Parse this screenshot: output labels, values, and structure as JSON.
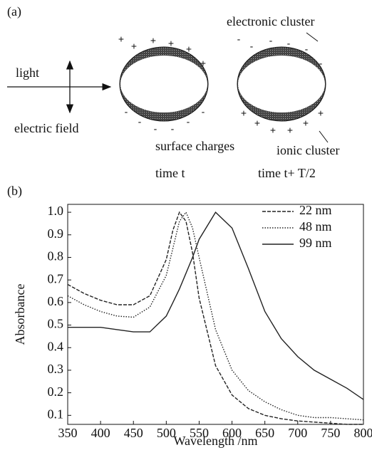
{
  "diagram": {
    "panel_a": "(a)",
    "light": "light",
    "electric_field": "electric field",
    "electronic_cluster": "electronic cluster",
    "surface_charges": "surface charges",
    "ionic_cluster": "ionic cluster",
    "time_1": "time t",
    "time_2": "time t+ T/2",
    "plus": "+",
    "minus": "-"
  },
  "chart_data": {
    "type": "line",
    "panel": "(b)",
    "x_label": "Wavelength /nm",
    "y_label": "Absorbance",
    "x": [
      350,
      375,
      400,
      425,
      450,
      475,
      500,
      510,
      520,
      530,
      540,
      550,
      575,
      600,
      625,
      650,
      675,
      700,
      725,
      750,
      775,
      800
    ],
    "series": [
      {
        "name": "22 nm",
        "color": "#222222",
        "line_style": "dashed",
        "values": [
          0.68,
          0.64,
          0.61,
          0.59,
          0.59,
          0.63,
          0.79,
          0.92,
          1.0,
          0.96,
          0.82,
          0.62,
          0.32,
          0.19,
          0.13,
          0.1,
          0.085,
          0.075,
          0.07,
          0.065,
          0.06,
          0.06
        ]
      },
      {
        "name": "48 nm",
        "color": "#222222",
        "line_style": "dotted",
        "values": [
          0.63,
          0.59,
          0.56,
          0.54,
          0.535,
          0.58,
          0.72,
          0.84,
          0.96,
          1.0,
          0.93,
          0.8,
          0.48,
          0.3,
          0.21,
          0.16,
          0.125,
          0.1,
          0.09,
          0.09,
          0.085,
          0.08
        ]
      },
      {
        "name": "99 nm",
        "color": "#222222",
        "line_style": "solid",
        "values": [
          0.49,
          0.49,
          0.49,
          0.48,
          0.47,
          0.47,
          0.54,
          0.6,
          0.66,
          0.73,
          0.8,
          0.88,
          1.0,
          0.93,
          0.75,
          0.56,
          0.44,
          0.36,
          0.3,
          0.26,
          0.22,
          0.17
        ]
      }
    ],
    "xlim": [
      350,
      800
    ],
    "xticks": [
      350,
      400,
      450,
      500,
      550,
      600,
      650,
      700,
      750,
      800
    ],
    "ylim": [
      0.06,
      1.035
    ],
    "yticks": [
      0.1,
      0.2,
      0.3,
      0.4,
      0.5,
      0.6,
      0.7,
      0.8,
      0.9,
      {
        "value": 1,
        "label": "1.0"
      }
    ],
    "legend": "upper right"
  }
}
